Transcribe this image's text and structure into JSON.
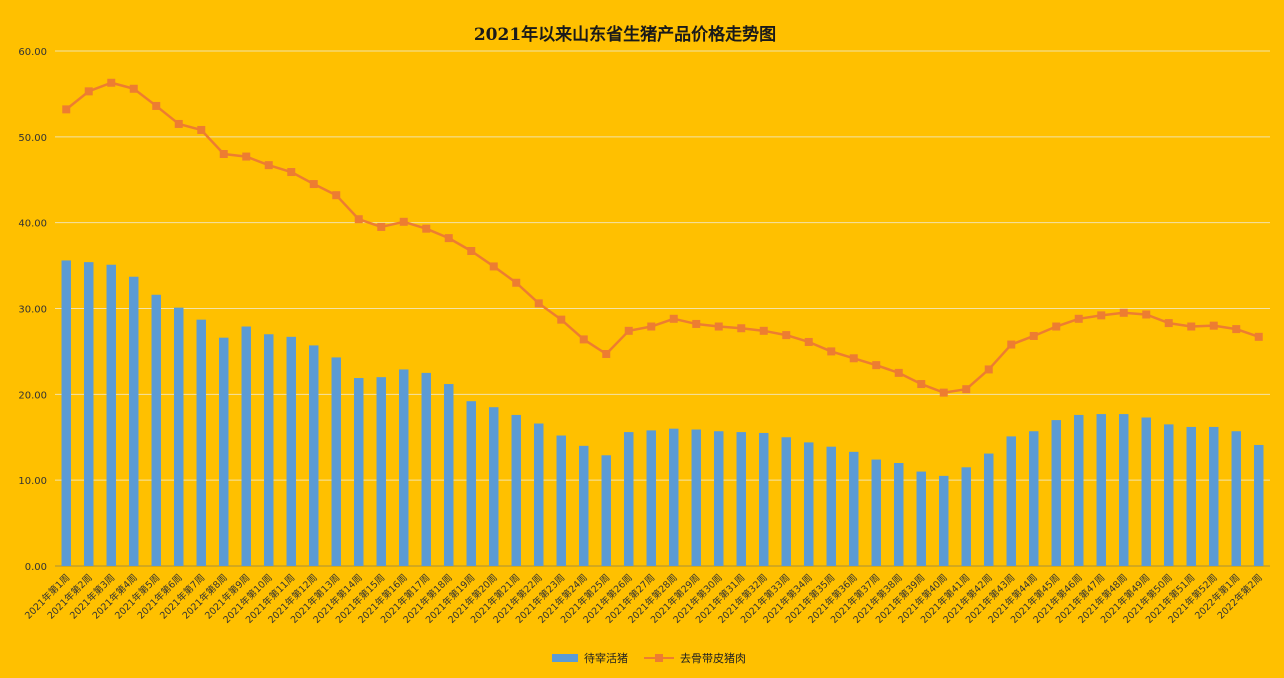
{
  "chart_data": {
    "type": "bar",
    "title": "2021年以来山东省生猪产品价格走势图",
    "categories": [
      "2021年第1周",
      "2021年第2周",
      "2021年第3周",
      "2021年第4周",
      "2021年第5周",
      "2021年第6周",
      "2021年第7周",
      "2021年第8周",
      "2021年第9周",
      "2021年第10周",
      "2021年第11周",
      "2021年第12周",
      "2021年第13周",
      "2021年第14周",
      "2021年第15周",
      "2021年第16周",
      "2021年第17周",
      "2021年第18周",
      "2021年第19周",
      "2021年第20周",
      "2021年第21周",
      "2021年第22周",
      "2021年第23周",
      "2021年第24周",
      "2021年第25周",
      "2021年第26周",
      "2021年第27周",
      "2021年第28周",
      "2021年第29周",
      "2021年第30周",
      "2021年第31周",
      "2021年第32周",
      "2021年第33周",
      "2021年第34周",
      "2021年第35周",
      "2021年第36周",
      "2021年第37周",
      "2021年第38周",
      "2021年第39周",
      "2021年第40周",
      "2021年第41周",
      "2021年第42周",
      "2021年第43周",
      "2021年第44周",
      "2021年第45周",
      "2021年第46周",
      "2021年第47周",
      "2021年第48周",
      "2021年第49周",
      "2021年第50周",
      "2021年第51周",
      "2021年第52周",
      "2022年第1周",
      "2022年第2周"
    ],
    "series": [
      {
        "name": "待宰活猪",
        "type": "bar",
        "color": "#5b9bd5",
        "values": [
          35.6,
          35.4,
          35.1,
          33.7,
          31.6,
          30.1,
          28.7,
          26.6,
          27.9,
          27.0,
          26.7,
          25.7,
          24.3,
          21.9,
          22.0,
          22.9,
          22.5,
          21.2,
          19.2,
          18.5,
          17.6,
          16.6,
          15.2,
          14.0,
          12.9,
          15.6,
          15.8,
          16.0,
          15.9,
          15.7,
          15.6,
          15.5,
          15.0,
          14.4,
          13.9,
          13.3,
          12.4,
          12.0,
          11.0,
          10.5,
          11.5,
          13.1,
          15.1,
          15.7,
          17.0,
          17.6,
          17.7,
          17.7,
          17.3,
          16.5,
          16.2,
          16.2,
          15.7,
          14.1
        ]
      },
      {
        "name": "去骨带皮猪肉",
        "type": "line",
        "color": "#ed7d31",
        "values": [
          53.2,
          55.3,
          56.3,
          55.6,
          53.6,
          51.5,
          50.8,
          48.0,
          47.7,
          46.7,
          45.9,
          44.5,
          43.2,
          40.4,
          39.5,
          40.1,
          39.3,
          38.2,
          36.7,
          34.9,
          33.0,
          30.6,
          28.7,
          26.4,
          24.7,
          27.4,
          27.9,
          28.8,
          28.2,
          27.9,
          27.7,
          27.4,
          26.9,
          26.1,
          25.0,
          24.2,
          23.4,
          22.5,
          21.2,
          20.2,
          20.6,
          22.9,
          25.8,
          26.8,
          27.9,
          28.8,
          29.2,
          29.5,
          29.3,
          28.3,
          27.9,
          28.0,
          27.6,
          26.7
        ]
      }
    ],
    "ylim": [
      0,
      60
    ],
    "yticks": [
      "0.00",
      "10.00",
      "20.00",
      "30.00",
      "40.00",
      "50.00",
      "60.00"
    ],
    "grid": true,
    "legend_position": "bottom"
  }
}
